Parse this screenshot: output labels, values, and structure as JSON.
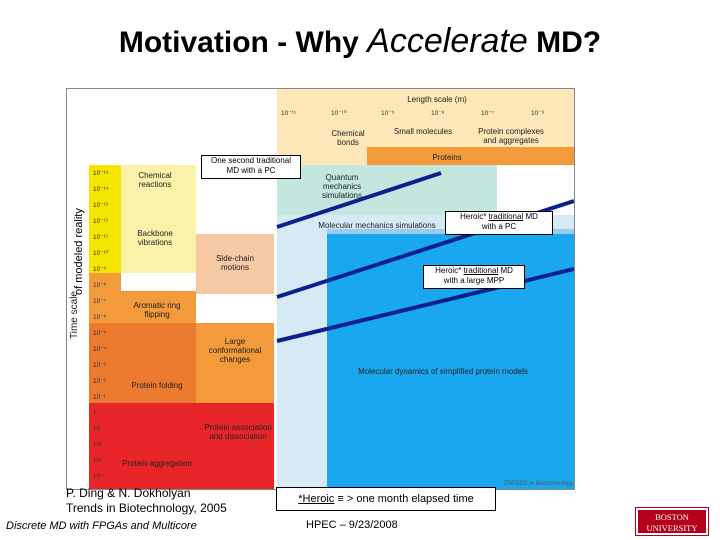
{
  "slide": {
    "title_pre": "Motivation - Why ",
    "title_italic": "Accelerate",
    "title_post": " MD?"
  },
  "figure": {
    "y_axis_label": "Time scale",
    "y_axis_label_overlay": "of modeled reality",
    "x_axis_label": "Length scale (m)",
    "x_ticks": [
      "10⁻¹¹",
      "10⁻¹⁰",
      "10⁻⁹",
      "10⁻⁸",
      "10⁻⁷",
      "10⁻⁶"
    ],
    "y_ticks": [
      "10⁻¹⁵",
      "10⁻¹⁴",
      "10⁻¹³",
      "10⁻¹²",
      "10⁻¹¹",
      "10⁻¹⁰",
      "10⁻⁹",
      "10⁻⁸",
      "10⁻⁷",
      "10⁻⁶",
      "10⁻⁵",
      "10⁻⁴",
      "10⁻³",
      "10⁻²",
      "10⁻¹",
      "1",
      "10",
      "10²",
      "10³",
      "10⁴"
    ],
    "top_labels": {
      "chemical_bonds": "Chemical bonds",
      "small_molecules": "Small molecules",
      "protein_complexes": "Protein complexes and aggregates",
      "proteins": "Proteins"
    },
    "left_labels": {
      "chemical_reactions": "Chemical reactions",
      "backbone": "Backbone vibrations",
      "side_chain": "Side-chain motions",
      "aromatic": "Aromatic ring flipping",
      "large_conf": "Large conformational changes",
      "folding": "Protein folding",
      "association": "Protein association and dissociation",
      "aggregation": "Protein aggregation"
    },
    "region_labels": {
      "quantum": "Quantum mechanics simulations",
      "mm": "Molecular mechanics simulations",
      "md_models": "Molecular dynamics of simplified protein models"
    },
    "journal_credit": "TRENDS in Biotechnology"
  },
  "callouts": {
    "pc_line1": "One second traditional",
    "pc_line2": "MD with a PC",
    "heroic_pc_pre": "Heroic* ",
    "heroic_pc_u": "traditional",
    "heroic_pc_post": " MD",
    "heroic_pc_line2": "with a PC",
    "heroic_mpp_pre": "Heroic* ",
    "heroic_mpp_u": "traditional",
    "heroic_mpp_post": " MD",
    "heroic_mpp_line2": "with a large MPP"
  },
  "citation": {
    "line1": "P. Ding & N. Dokholyan",
    "line2": "Trends in Biotechnology, 2005"
  },
  "heroic_note": {
    "term": "*Heroic",
    "symbol": "≡",
    "definition": "> one month elapsed time"
  },
  "footer": {
    "left": "Discrete MD with FPGAs and Multicore",
    "center": "HPEC – 9/23/2008",
    "logo_line1": "BOSTON",
    "logo_line2": "UNIVERSITY"
  },
  "colors": {
    "yellow": "#f6e500",
    "light_yellow": "#fbf1a8",
    "peach": "#f5c9a4",
    "orange": "#f39a3a",
    "dark_orange": "#ec7a2f",
    "red": "#e8262a",
    "light_blue": "#d5eaf5",
    "mid_blue": "#9ccbed",
    "blue": "#19a7ef",
    "teal": "#c3e6df",
    "navy_line": "#0d1f8c"
  }
}
